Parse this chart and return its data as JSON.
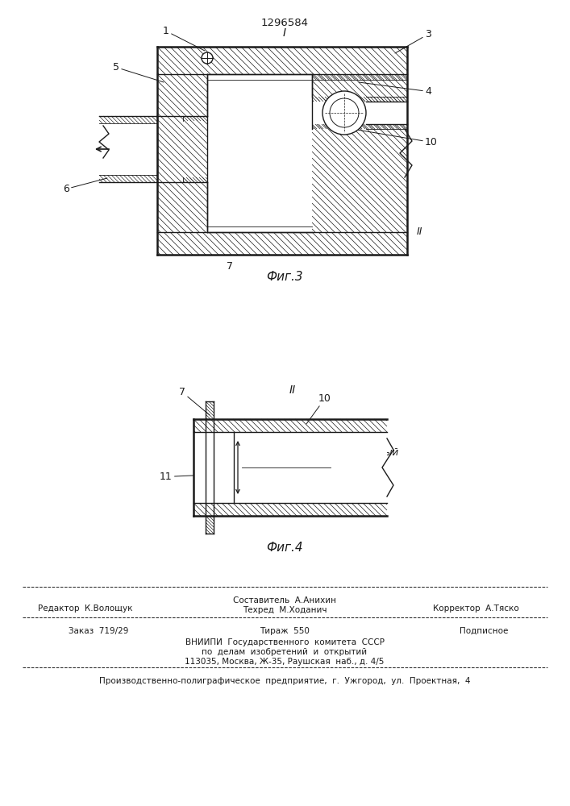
{
  "patent_number": "1296584",
  "fig3_caption": "Фиг.3",
  "fig4_caption": "Фиг.4",
  "footer_line1_left": "Редактор  К.Волощук",
  "footer_line1_center": "Составитель  А.Анихин",
  "footer_line1b_center": "Техред  М.Ходанич",
  "footer_line1_right": "Корректор  А.Тяско",
  "footer_line2_left": "Заказ  719/29",
  "footer_line2_center": "Тираж  550",
  "footer_line2_right": "Подписное",
  "footer_line3": "ВНИИПИ  Государственного  комитета  СССР",
  "footer_line4": "по  делам  изобретений  и  открытий",
  "footer_line5": "113035, Москва, Ж-35, Раушская  наб., д. 4/5",
  "footer_last": "Производственно-полиграфическое  предприятие,  г.  Ужгород,  ул.  Проектная,  4",
  "bg_color": "#ffffff",
  "line_color": "#1a1a1a",
  "hatch_color": "#2a2a2a"
}
